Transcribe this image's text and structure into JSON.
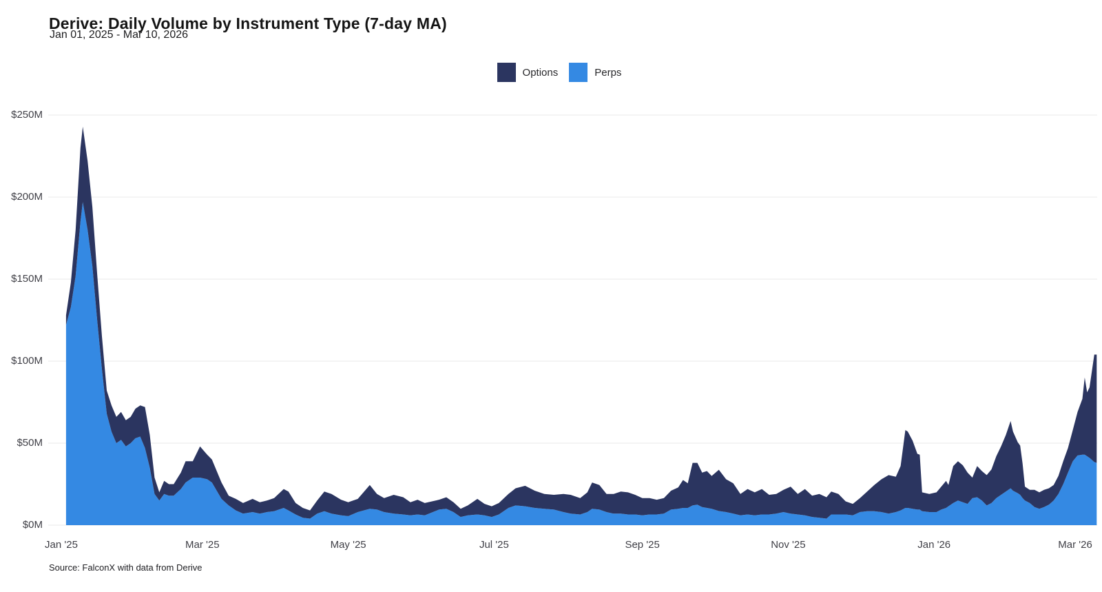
{
  "header": {
    "title": "Derive: Daily Volume by Instrument Type (7-day MA)",
    "subtitle": "Jan 01, 2025 - Mar 10, 2026"
  },
  "legend": [
    {
      "label": "Options",
      "color": "#2b3560"
    },
    {
      "label": "Perps",
      "color": "#3489e3"
    }
  ],
  "footer": {
    "source": "Source: FalconX with data from Derive"
  },
  "colors": {
    "options": "#2b3560",
    "perps": "#3489e3",
    "grid": "#e8e8e8",
    "axis_text": "#3f3f46",
    "background": "#ffffff"
  },
  "chart_data": {
    "type": "area",
    "stacked": true,
    "title": "Derive: Daily Volume by Instrument Type (7-day MA)",
    "date_range": "Jan 01, 2025 - Mar 10, 2026",
    "unit": "USD millions, daily volume smoothed with 7-day moving average",
    "ylim": [
      0,
      250
    ],
    "grid": true,
    "legend_position": "top-center",
    "y_axis": {
      "ticks": [
        {
          "value": 0,
          "label": "$0M"
        },
        {
          "value": 50,
          "label": "$50M"
        },
        {
          "value": 100,
          "label": "$100M"
        },
        {
          "value": 150,
          "label": "$150M"
        },
        {
          "value": 200,
          "label": "$200M"
        },
        {
          "value": 250,
          "label": "$250M"
        }
      ]
    },
    "x_axis": {
      "ticks": [
        {
          "date": "2025-01-01",
          "label": "Jan '25"
        },
        {
          "date": "2025-03-01",
          "label": "Mar '25"
        },
        {
          "date": "2025-05-01",
          "label": "May '25"
        },
        {
          "date": "2025-07-01",
          "label": "Jul '25"
        },
        {
          "date": "2025-09-01",
          "label": "Sep '25"
        },
        {
          "date": "2025-11-01",
          "label": "Nov '25"
        },
        {
          "date": "2026-01-01",
          "label": "Jan '26"
        },
        {
          "date": "2026-03-01",
          "label": "Mar '26"
        }
      ]
    },
    "dates": [
      "2025-01-03",
      "2025-01-05",
      "2025-01-07",
      "2025-01-09",
      "2025-01-10",
      "2025-01-12",
      "2025-01-14",
      "2025-01-16",
      "2025-01-18",
      "2025-01-20",
      "2025-01-22",
      "2025-01-24",
      "2025-01-26",
      "2025-01-28",
      "2025-01-30",
      "2025-02-01",
      "2025-02-03",
      "2025-02-05",
      "2025-02-07",
      "2025-02-09",
      "2025-02-11",
      "2025-02-13",
      "2025-02-15",
      "2025-02-17",
      "2025-02-20",
      "2025-02-22",
      "2025-02-25",
      "2025-02-28",
      "2025-03-03",
      "2025-03-05",
      "2025-03-09",
      "2025-03-12",
      "2025-03-15",
      "2025-03-18",
      "2025-03-22",
      "2025-03-25",
      "2025-03-28",
      "2025-03-31",
      "2025-04-04",
      "2025-04-06",
      "2025-04-09",
      "2025-04-12",
      "2025-04-15",
      "2025-04-18",
      "2025-04-21",
      "2025-04-24",
      "2025-04-28",
      "2025-05-01",
      "2025-05-05",
      "2025-05-10",
      "2025-05-13",
      "2025-05-16",
      "2025-05-20",
      "2025-05-24",
      "2025-05-27",
      "2025-05-30",
      "2025-06-02",
      "2025-06-08",
      "2025-06-11",
      "2025-06-14",
      "2025-06-17",
      "2025-06-20",
      "2025-06-24",
      "2025-06-27",
      "2025-06-30",
      "2025-07-03",
      "2025-07-07",
      "2025-07-10",
      "2025-07-14",
      "2025-07-18",
      "2025-07-22",
      "2025-07-26",
      "2025-07-30",
      "2025-08-02",
      "2025-08-06",
      "2025-08-09",
      "2025-08-11",
      "2025-08-14",
      "2025-08-17",
      "2025-08-20",
      "2025-08-23",
      "2025-08-26",
      "2025-08-29",
      "2025-09-01",
      "2025-09-04",
      "2025-09-07",
      "2025-09-10",
      "2025-09-13",
      "2025-09-16",
      "2025-09-18",
      "2025-09-20",
      "2025-09-22",
      "2025-09-24",
      "2025-09-26",
      "2025-09-28",
      "2025-09-30",
      "2025-10-03",
      "2025-10-06",
      "2025-10-09",
      "2025-10-12",
      "2025-10-15",
      "2025-10-18",
      "2025-10-21",
      "2025-10-24",
      "2025-10-27",
      "2025-10-30",
      "2025-11-02",
      "2025-11-05",
      "2025-11-08",
      "2025-11-11",
      "2025-11-14",
      "2025-11-17",
      "2025-11-19",
      "2025-11-22",
      "2025-11-25",
      "2025-11-28",
      "2025-12-01",
      "2025-12-04",
      "2025-12-07",
      "2025-12-10",
      "2025-12-13",
      "2025-12-16",
      "2025-12-18",
      "2025-12-20",
      "2025-12-21",
      "2025-12-23",
      "2025-12-25",
      "2025-12-26",
      "2025-12-27",
      "2025-12-30",
      "2026-01-02",
      "2026-01-04",
      "2026-01-06",
      "2026-01-07",
      "2026-01-09",
      "2026-01-11",
      "2026-01-13",
      "2026-01-15",
      "2026-01-17",
      "2026-01-19",
      "2026-01-21",
      "2026-01-23",
      "2026-01-25",
      "2026-01-27",
      "2026-01-29",
      "2026-01-31",
      "2026-02-02",
      "2026-02-03",
      "2026-02-05",
      "2026-02-06",
      "2026-02-07",
      "2026-02-08",
      "2026-02-10",
      "2026-02-12",
      "2026-02-14",
      "2026-02-16",
      "2026-02-18",
      "2026-02-20",
      "2026-02-22",
      "2026-02-24",
      "2026-02-26",
      "2026-02-28",
      "2026-03-02",
      "2026-03-04",
      "2026-03-05",
      "2026-03-06",
      "2026-03-07",
      "2026-03-09",
      "2026-03-10"
    ],
    "series": [
      {
        "name": "Perps",
        "color": "#3489e3",
        "stack": "bottom",
        "values": [
          122,
          133,
          152,
          185,
          197,
          180,
          158,
          125,
          95,
          68,
          57,
          50,
          52,
          48,
          50,
          53,
          54,
          47,
          35,
          19,
          15,
          19,
          18,
          18,
          22,
          26,
          29,
          29,
          28,
          26,
          16,
          12,
          9,
          7,
          8,
          7,
          8,
          8.5,
          10.5,
          9,
          6.5,
          4.5,
          4,
          7,
          8.5,
          7,
          6,
          5.5,
          8,
          10,
          9.5,
          8,
          7,
          6.5,
          6,
          6.5,
          6,
          9.5,
          10,
          8,
          5,
          6,
          6.5,
          6,
          5,
          6.5,
          10.5,
          12,
          11.5,
          10.5,
          10,
          9.5,
          8,
          7,
          6.5,
          8,
          10,
          9.5,
          8,
          7,
          7,
          6.5,
          6.5,
          6,
          6.5,
          6.5,
          7,
          9.5,
          10,
          10.5,
          10.5,
          12,
          12.5,
          11,
          10.5,
          10,
          8.6,
          8,
          7,
          6,
          6.5,
          6,
          6.5,
          6.5,
          7,
          8,
          7,
          6.5,
          6,
          5,
          4.5,
          4,
          6.5,
          6.5,
          6.5,
          6,
          8,
          8.5,
          8.5,
          8,
          7,
          8,
          9,
          10.5,
          10.5,
          10,
          9.5,
          9.5,
          8.5,
          8,
          8,
          9.5,
          10.5,
          11.5,
          13.5,
          15,
          14,
          13,
          16.5,
          17,
          15,
          12,
          13.5,
          16.5,
          18.5,
          20.5,
          22.5,
          21,
          19.5,
          18.5,
          16.5,
          15,
          13.5,
          11,
          10,
          11,
          12.5,
          15,
          19,
          25,
          32,
          39,
          42.5,
          43,
          43,
          42,
          41,
          38.5,
          38
        ]
      },
      {
        "name": "Options",
        "color": "#2b3560",
        "stack": "top",
        "values": [
          6,
          15,
          28,
          45,
          46,
          42,
          36,
          28,
          20,
          14,
          16,
          16,
          17,
          16,
          16,
          18,
          19,
          25,
          20,
          10,
          5,
          8,
          7,
          7,
          10,
          13,
          10,
          19,
          15,
          14,
          10,
          6,
          7,
          6.5,
          8,
          7,
          7,
          8,
          11.5,
          11.5,
          7,
          6,
          5,
          8,
          12,
          12,
          9.5,
          8.5,
          8,
          14.5,
          9.5,
          8.5,
          11.5,
          10.5,
          8,
          9,
          7.5,
          6,
          7,
          6,
          5,
          6,
          9.5,
          7,
          6.5,
          7,
          8.5,
          10.5,
          12.5,
          10.5,
          9,
          9,
          11,
          11.5,
          10,
          12,
          16,
          15,
          11,
          12,
          13.5,
          13.5,
          12,
          10.5,
          10,
          9,
          9.5,
          11.5,
          13,
          17,
          15,
          26,
          25.5,
          21,
          22.5,
          20,
          25.2,
          20,
          18.5,
          13,
          15.5,
          14,
          15.5,
          12,
          12,
          13.5,
          16.5,
          12.5,
          16,
          13,
          14.5,
          13,
          14,
          12.5,
          8,
          7,
          8.5,
          12,
          16,
          20,
          23.5,
          21.5,
          27,
          47.5,
          46.5,
          41.5,
          34,
          33.5,
          11.5,
          11,
          12,
          14,
          16.5,
          13,
          22.5,
          24,
          22.5,
          19,
          12.5,
          19,
          18,
          18.5,
          20.5,
          25.5,
          29.5,
          34.5,
          41,
          36,
          31,
          30,
          21,
          8.5,
          8,
          10.5,
          10,
          10.5,
          10,
          9.5,
          11,
          14,
          15,
          19,
          26.5,
          34,
          47,
          39,
          43,
          65.5,
          66
        ]
      }
    ]
  }
}
